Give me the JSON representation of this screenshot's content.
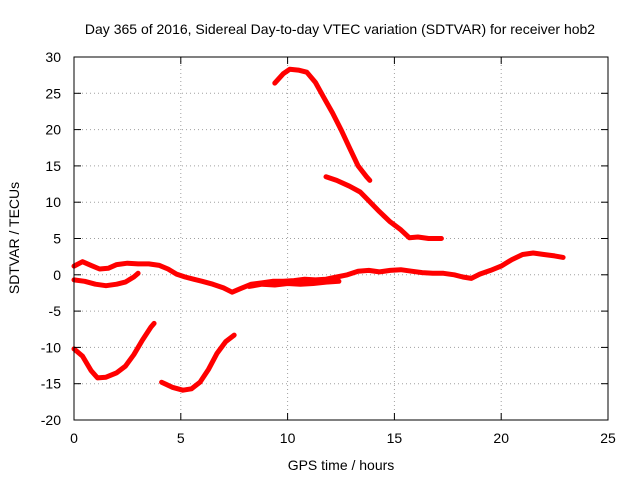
{
  "chart_data": {
    "type": "line",
    "title": "Day 365 of 2016, Sidereal Day-to-day VTEC variation (SDTVAR) for receiver hob2",
    "xlabel": "GPS time / hours",
    "ylabel": "SDTVAR / TECUs",
    "xlim": [
      0,
      25
    ],
    "ylim": [
      -20,
      30
    ],
    "xticks": [
      0,
      5,
      10,
      15,
      20,
      25
    ],
    "yticks": [
      -20,
      -15,
      -10,
      -5,
      0,
      5,
      10,
      15,
      20,
      25,
      30
    ],
    "grid": true,
    "series_color": "#ff0000",
    "series": [
      {
        "name": "arc-low-left",
        "values": [
          [
            0,
            -10.2
          ],
          [
            0.4,
            -11.2
          ],
          [
            0.8,
            -13.2
          ],
          [
            1.1,
            -14.2
          ],
          [
            1.5,
            -14.1
          ],
          [
            2.0,
            -13.5
          ],
          [
            2.4,
            -12.6
          ],
          [
            2.8,
            -11.0
          ],
          [
            3.2,
            -9.0
          ],
          [
            3.6,
            -7.2
          ],
          [
            3.75,
            -6.7
          ]
        ]
      },
      {
        "name": "arc-low-middle",
        "values": [
          [
            4.1,
            -14.8
          ],
          [
            4.6,
            -15.5
          ],
          [
            5.1,
            -15.9
          ],
          [
            5.5,
            -15.7
          ],
          [
            5.9,
            -14.8
          ],
          [
            6.3,
            -13.0
          ],
          [
            6.7,
            -10.8
          ],
          [
            7.1,
            -9.2
          ],
          [
            7.5,
            -8.3
          ]
        ]
      },
      {
        "name": "arc-peak",
        "values": [
          [
            9.4,
            26.4
          ],
          [
            9.8,
            27.7
          ],
          [
            10.1,
            28.3
          ],
          [
            10.5,
            28.2
          ],
          [
            10.9,
            27.9
          ],
          [
            11.3,
            26.5
          ],
          [
            11.7,
            24.4
          ],
          [
            12.1,
            22.3
          ],
          [
            12.5,
            20.0
          ],
          [
            12.9,
            17.5
          ],
          [
            13.3,
            15.0
          ],
          [
            13.7,
            13.5
          ],
          [
            13.85,
            13.0
          ]
        ]
      },
      {
        "name": "arc-descending",
        "values": [
          [
            11.8,
            13.5
          ],
          [
            12.3,
            13.0
          ],
          [
            12.9,
            12.2
          ],
          [
            13.4,
            11.4
          ],
          [
            13.8,
            10.2
          ],
          [
            14.3,
            8.7
          ],
          [
            14.8,
            7.3
          ],
          [
            15.3,
            6.2
          ],
          [
            15.7,
            5.1
          ],
          [
            16.1,
            5.2
          ],
          [
            16.6,
            5.0
          ],
          [
            17.2,
            5.0
          ]
        ]
      },
      {
        "name": "arc-upper-baseline",
        "values": [
          [
            0,
            1.2
          ],
          [
            0.4,
            1.8
          ],
          [
            0.8,
            1.3
          ],
          [
            1.2,
            0.8
          ],
          [
            1.6,
            0.9
          ],
          [
            2.0,
            1.4
          ],
          [
            2.5,
            1.6
          ],
          [
            3.0,
            1.5
          ],
          [
            3.5,
            1.5
          ],
          [
            4.0,
            1.3
          ],
          [
            4.4,
            0.8
          ],
          [
            4.8,
            0.1
          ],
          [
            5.2,
            -0.3
          ],
          [
            5.6,
            -0.6
          ],
          [
            6.0,
            -0.9
          ],
          [
            6.5,
            -1.3
          ],
          [
            7.0,
            -1.8
          ],
          [
            7.4,
            -2.4
          ],
          [
            7.8,
            -1.9
          ],
          [
            8.3,
            -1.3
          ],
          [
            8.8,
            -1.1
          ],
          [
            9.3,
            -0.9
          ],
          [
            9.8,
            -0.9
          ],
          [
            10.3,
            -0.8
          ],
          [
            10.8,
            -0.6
          ],
          [
            11.3,
            -0.7
          ],
          [
            11.8,
            -0.6
          ],
          [
            12.3,
            -0.3
          ],
          [
            12.8,
            0.0
          ],
          [
            13.3,
            0.5
          ],
          [
            13.8,
            0.6
          ],
          [
            14.3,
            0.4
          ],
          [
            14.8,
            0.6
          ],
          [
            15.3,
            0.7
          ],
          [
            15.8,
            0.5
          ],
          [
            16.3,
            0.3
          ],
          [
            16.8,
            0.2
          ],
          [
            17.3,
            0.2
          ],
          [
            17.8,
            0.0
          ],
          [
            18.2,
            -0.3
          ],
          [
            18.6,
            -0.5
          ],
          [
            19.0,
            0.1
          ],
          [
            19.5,
            0.6
          ],
          [
            20.0,
            1.2
          ],
          [
            20.5,
            2.1
          ],
          [
            21.0,
            2.8
          ],
          [
            21.5,
            3.0
          ],
          [
            22.0,
            2.8
          ],
          [
            22.5,
            2.6
          ],
          [
            22.9,
            2.4
          ]
        ]
      },
      {
        "name": "arc-lower-baseline",
        "values": [
          [
            0,
            -0.7
          ],
          [
            0.5,
            -0.9
          ],
          [
            1.0,
            -1.3
          ],
          [
            1.5,
            -1.5
          ],
          [
            2.0,
            -1.3
          ],
          [
            2.4,
            -1.0
          ],
          [
            2.8,
            -0.3
          ],
          [
            3.0,
            0.2
          ]
        ]
      },
      {
        "name": "arc-midday-band",
        "values": [
          [
            8.2,
            -1.6
          ],
          [
            8.8,
            -1.3
          ],
          [
            9.4,
            -1.4
          ],
          [
            10.0,
            -1.2
          ],
          [
            10.6,
            -1.3
          ],
          [
            11.2,
            -1.2
          ],
          [
            11.8,
            -1.0
          ],
          [
            12.4,
            -0.9
          ]
        ]
      }
    ]
  }
}
